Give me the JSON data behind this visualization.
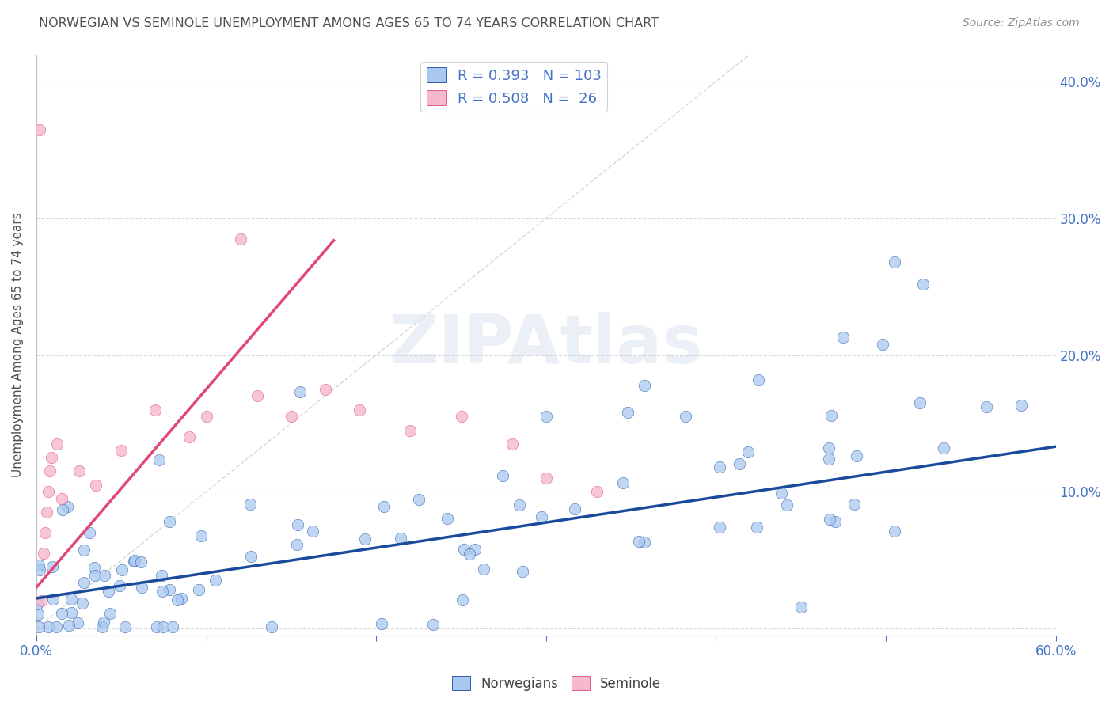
{
  "title": "NORWEGIAN VS SEMINOLE UNEMPLOYMENT AMONG AGES 65 TO 74 YEARS CORRELATION CHART",
  "source": "Source: ZipAtlas.com",
  "ylabel": "Unemployment Among Ages 65 to 74 years",
  "xlim": [
    0.0,
    0.6
  ],
  "ylim": [
    -0.005,
    0.42
  ],
  "xticks": [
    0.0,
    0.1,
    0.2,
    0.3,
    0.4,
    0.5,
    0.6
  ],
  "yticks": [
    0.0,
    0.1,
    0.2,
    0.3,
    0.4
  ],
  "norwegian_color": "#A8C8F0",
  "seminole_color": "#F5B8CC",
  "norwegian_line_color": "#1A4A9C",
  "seminole_line_color": "#E04878",
  "diagonal_color": "#C8C8C8",
  "R_norwegian": 0.393,
  "N_norwegian": 103,
  "R_seminole": 0.508,
  "N_seminole": 26,
  "legend_label_norwegian": "Norwegians",
  "legend_label_seminole": "Seminole",
  "watermark": "ZIPAtlas",
  "background_color": "#FFFFFF",
  "title_color": "#505050",
  "source_color": "#909090",
  "axis_label_color": "#505050",
  "tick_color": "#4472C4",
  "legend_R_color": "#4472C4",
  "norwegian_slope": 0.185,
  "norwegian_intercept": 0.022,
  "seminole_slope": 1.45,
  "seminole_intercept": 0.03,
  "seminole_line_xmax": 0.175
}
